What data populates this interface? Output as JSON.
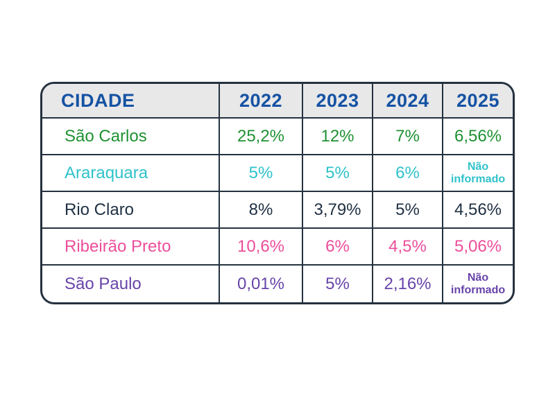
{
  "table": {
    "columns": [
      "CIDADE",
      "2022",
      "2023",
      "2024",
      "2025"
    ],
    "rows": [
      {
        "city": "São Carlos",
        "color": "#1F9132",
        "values": [
          "25,2%",
          "12%",
          "7%",
          "6,56%"
        ]
      },
      {
        "city": "Araraquara",
        "color": "#2FC2CA",
        "values": [
          "5%",
          "5%",
          "6%",
          "Não informado"
        ]
      },
      {
        "city": "Rio Claro",
        "color": "#1F3043",
        "values": [
          "8%",
          "3,79%",
          "5%",
          "4,56%"
        ]
      },
      {
        "city": "Ribeirão Preto",
        "color": "#EC4E9B",
        "values": [
          "10,6%",
          "6%",
          "4,5%",
          "5,06%"
        ]
      },
      {
        "city": "São Paulo",
        "color": "#6744A9",
        "values": [
          "0,01%",
          "5%",
          "2,16%",
          "Não informado"
        ]
      }
    ],
    "header_text_color": "#1552A3",
    "header_background": "#E8E8E9",
    "border_color": "#24313F",
    "not_informed_label": "Não informado"
  },
  "chart_data": {
    "type": "table",
    "title": "",
    "columns": [
      "CIDADE",
      "2022",
      "2023",
      "2024",
      "2025"
    ],
    "rows": [
      [
        "São Carlos",
        "25,2%",
        "12%",
        "7%",
        "6,56%"
      ],
      [
        "Araraquara",
        "5%",
        "5%",
        "6%",
        "Não informado"
      ],
      [
        "Rio Claro",
        "8%",
        "3,79%",
        "5%",
        "4,56%"
      ],
      [
        "Ribeirão Preto",
        "10,6%",
        "6%",
        "4,5%",
        "5,06%"
      ],
      [
        "São Paulo",
        "0,01%",
        "5%",
        "2,16%",
        "Não informado"
      ]
    ],
    "notes": "Percentages per city per year; 'Não informado' = not informed"
  }
}
